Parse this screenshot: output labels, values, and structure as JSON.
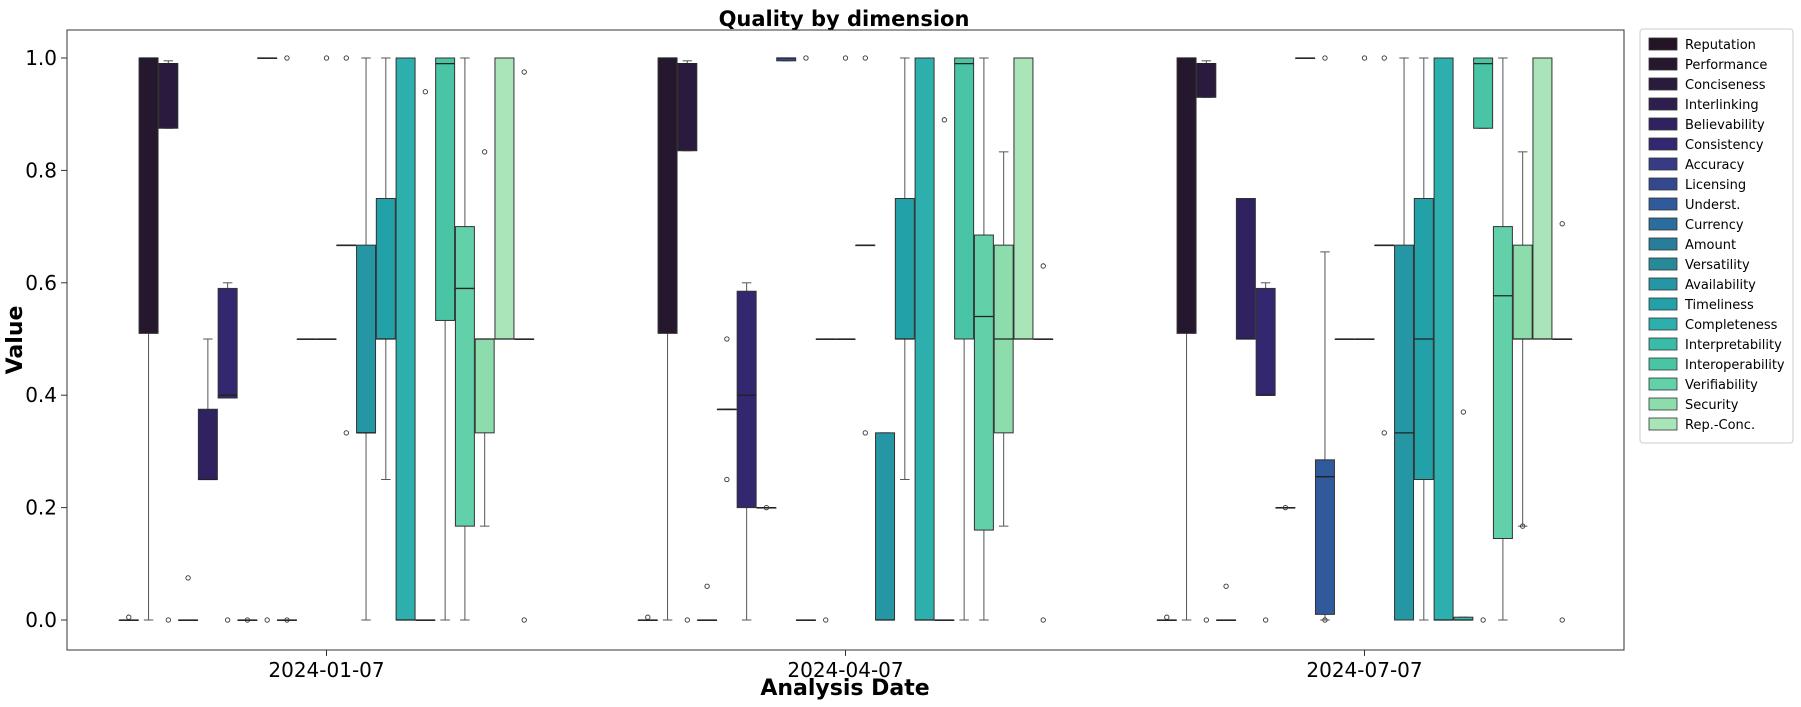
{
  "chart_data": {
    "type": "box",
    "title": "Quality by dimension",
    "xlabel": "Analysis Date",
    "ylabel": "Value",
    "ylim": [
      -0.05,
      1.045
    ],
    "yticks": [
      "0.0",
      "0.2",
      "0.4",
      "0.6",
      "0.8",
      "1.0"
    ],
    "categories": [
      "2024-01-07",
      "2024-04-07",
      "2024-07-07"
    ],
    "legend_position": "right-outside",
    "series": [
      {
        "name": "Reputation",
        "color": "#231526",
        "boxes": [
          {
            "whislo": 0,
            "q1": 0,
            "med": 0,
            "q3": 0,
            "whishi": 0,
            "fliers": [
              0.005
            ]
          },
          {
            "whislo": 0,
            "q1": 0,
            "med": 0,
            "q3": 0,
            "whishi": 0,
            "fliers": [
              0.005
            ]
          },
          {
            "whislo": 0,
            "q1": 0,
            "med": 0,
            "q3": 0,
            "whishi": 0,
            "fliers": [
              0.005
            ]
          }
        ]
      },
      {
        "name": "Performance",
        "color": "#25172d",
        "boxes": [
          {
            "whislo": 0,
            "q1": 0.51,
            "med": 1.0,
            "q3": 1.0,
            "whishi": 1.0,
            "fliers": []
          },
          {
            "whislo": 0,
            "q1": 0.51,
            "med": 1.0,
            "q3": 1.0,
            "whishi": 1.0,
            "fliers": []
          },
          {
            "whislo": 0,
            "q1": 0.51,
            "med": 1.0,
            "q3": 1.0,
            "whishi": 1.0,
            "fliers": []
          }
        ]
      },
      {
        "name": "Conciseness",
        "color": "#2a1a3d",
        "boxes": [
          {
            "whislo": 0.875,
            "q1": 0.875,
            "med": 0.99,
            "q3": 0.99,
            "whishi": 0.995,
            "fliers": [
              0
            ]
          },
          {
            "whislo": 0.835,
            "q1": 0.835,
            "med": 0.99,
            "q3": 0.99,
            "whishi": 0.995,
            "fliers": [
              0
            ]
          },
          {
            "whislo": 0.93,
            "q1": 0.93,
            "med": 0.99,
            "q3": 0.99,
            "whishi": 0.995,
            "fliers": [
              0
            ]
          }
        ]
      },
      {
        "name": "Interlinking",
        "color": "#2e1e4e",
        "boxes": [
          {
            "whislo": 0,
            "q1": 0,
            "med": 0,
            "q3": 0,
            "whishi": 0,
            "fliers": [
              0.075
            ]
          },
          {
            "whislo": 0,
            "q1": 0,
            "med": 0,
            "q3": 0,
            "whishi": 0,
            "fliers": [
              0.06
            ]
          },
          {
            "whislo": 0,
            "q1": 0,
            "med": 0,
            "q3": 0,
            "whishi": 0,
            "fliers": [
              0.06
            ]
          }
        ]
      },
      {
        "name": "Believability",
        "color": "#302260",
        "boxes": [
          {
            "whislo": 0.25,
            "q1": 0.25,
            "med": 0.25,
            "q3": 0.375,
            "whishi": 0.5,
            "fliers": []
          },
          {
            "whislo": 0.375,
            "q1": 0.375,
            "med": 0.375,
            "q3": 0.375,
            "whishi": 0.375,
            "fliers": [
              0.5,
              0.25
            ]
          },
          {
            "whislo": 0.5,
            "q1": 0.5,
            "med": 0.5,
            "q3": 0.75,
            "whishi": 0.75,
            "fliers": []
          }
        ]
      },
      {
        "name": "Consistency",
        "color": "#33286f",
        "boxes": [
          {
            "whislo": 0.395,
            "q1": 0.395,
            "med": 0.4,
            "q3": 0.59,
            "whishi": 0.6,
            "fliers": [
              0
            ]
          },
          {
            "whislo": 0,
            "q1": 0.2,
            "med": 0.4,
            "q3": 0.585,
            "whishi": 0.6,
            "fliers": []
          },
          {
            "whislo": 0.4,
            "q1": 0.4,
            "med": 0.4,
            "q3": 0.59,
            "whishi": 0.6,
            "fliers": [
              0
            ]
          }
        ]
      },
      {
        "name": "Accuracy",
        "color": "#373b86",
        "boxes": [
          {
            "whislo": 0,
            "q1": 0,
            "med": 0,
            "q3": 0,
            "whishi": 0,
            "fliers": [
              0
            ]
          },
          {
            "whislo": 0.2,
            "q1": 0.2,
            "med": 0.2,
            "q3": 0.2,
            "whishi": 0.2,
            "fliers": [
              0.2
            ]
          },
          {
            "whislo": 0.2,
            "q1": 0.2,
            "med": 0.2,
            "q3": 0.2,
            "whishi": 0.2,
            "fliers": [
              0.2
            ]
          }
        ]
      },
      {
        "name": "Licensing",
        "color": "#34488f",
        "boxes": [
          {
            "whislo": 1.0,
            "q1": 1.0,
            "med": 1.0,
            "q3": 1.0,
            "whishi": 1.0,
            "fliers": [
              0
            ]
          },
          {
            "whislo": 0.995,
            "q1": 0.995,
            "med": 1.0,
            "q3": 1.0,
            "whishi": 1.0,
            "fliers": []
          },
          {
            "whislo": 1.0,
            "q1": 1.0,
            "med": 1.0,
            "q3": 1.0,
            "whishi": 1.0,
            "fliers": []
          }
        ]
      },
      {
        "name": "Underst.",
        "color": "#305a9b",
        "boxes": [
          {
            "whislo": 0,
            "q1": 0,
            "med": 0,
            "q3": 0,
            "whishi": 0,
            "fliers": [
              1.0,
              0
            ]
          },
          {
            "whislo": 0,
            "q1": 0,
            "med": 0,
            "q3": 0,
            "whishi": 0,
            "fliers": [
              1.0
            ]
          },
          {
            "whislo": 0,
            "q1": 0.01,
            "med": 0.255,
            "q3": 0.285,
            "whishi": 0.655,
            "fliers": [
              1.0,
              0
            ]
          }
        ]
      },
      {
        "name": "Currency",
        "color": "#2b6d9d",
        "boxes": [
          {
            "whislo": 0.5,
            "q1": 0.5,
            "med": 0.5,
            "q3": 0.5,
            "whishi": 0.5,
            "fliers": []
          },
          {
            "whislo": 0.5,
            "q1": 0.5,
            "med": 0.5,
            "q3": 0.5,
            "whishi": 0.5,
            "fliers": [
              0
            ]
          },
          {
            "whislo": 0.5,
            "q1": 0.5,
            "med": 0.5,
            "q3": 0.5,
            "whishi": 0.5,
            "fliers": []
          }
        ]
      },
      {
        "name": "Amount",
        "color": "#287d9b",
        "boxes": [
          {
            "whislo": 0.5,
            "q1": 0.5,
            "med": 0.5,
            "q3": 0.5,
            "whishi": 0.5,
            "fliers": [
              1.0
            ]
          },
          {
            "whislo": 0.5,
            "q1": 0.5,
            "med": 0.5,
            "q3": 0.5,
            "whishi": 0.5,
            "fliers": [
              1.0
            ]
          },
          {
            "whislo": 0.5,
            "q1": 0.5,
            "med": 0.5,
            "q3": 0.5,
            "whishi": 0.5,
            "fliers": [
              1.0
            ]
          }
        ]
      },
      {
        "name": "Versatility",
        "color": "#268a98",
        "boxes": [
          {
            "whislo": 0.667,
            "q1": 0.667,
            "med": 0.667,
            "q3": 0.667,
            "whishi": 0.667,
            "fliers": [
              1.0,
              0.333
            ]
          },
          {
            "whislo": 0.667,
            "q1": 0.667,
            "med": 0.667,
            "q3": 0.667,
            "whishi": 0.667,
            "fliers": [
              1.0,
              0.333
            ]
          },
          {
            "whislo": 0.667,
            "q1": 0.667,
            "med": 0.667,
            "q3": 0.667,
            "whishi": 0.667,
            "fliers": [
              1.0,
              0.333
            ]
          }
        ]
      },
      {
        "name": "Availability",
        "color": "#2496a4",
        "boxes": [
          {
            "whislo": 0,
            "q1": 0.333,
            "med": 0.333,
            "q3": 0.667,
            "whishi": 1.0,
            "fliers": []
          },
          {
            "whislo": 0,
            "q1": 0,
            "med": 0,
            "q3": 0.333,
            "whishi": 0.333,
            "fliers": []
          },
          {
            "whislo": 0,
            "q1": 0,
            "med": 0.333,
            "q3": 0.667,
            "whishi": 1.0,
            "fliers": []
          }
        ]
      },
      {
        "name": "Timeliness",
        "color": "#22a2a8",
        "boxes": [
          {
            "whislo": 0.25,
            "q1": 0.5,
            "med": 0.5,
            "q3": 0.75,
            "whishi": 1.0,
            "fliers": []
          },
          {
            "whislo": 0.25,
            "q1": 0.5,
            "med": 0.5,
            "q3": 0.75,
            "whishi": 1.0,
            "fliers": []
          },
          {
            "whislo": 0,
            "q1": 0.25,
            "med": 0.5,
            "q3": 0.75,
            "whishi": 1.0,
            "fliers": []
          }
        ]
      },
      {
        "name": "Completeness",
        "color": "#2db0ad",
        "boxes": [
          {
            "whislo": 0,
            "q1": 0,
            "med": 0,
            "q3": 1.0,
            "whishi": 1.0,
            "fliers": []
          },
          {
            "whislo": 0,
            "q1": 0,
            "med": 0,
            "q3": 1.0,
            "whishi": 1.0,
            "fliers": []
          },
          {
            "whislo": 0,
            "q1": 0,
            "med": 0,
            "q3": 1.0,
            "whishi": 1.0,
            "fliers": []
          }
        ]
      },
      {
        "name": "Interpretability",
        "color": "#38bba8",
        "boxes": [
          {
            "whislo": 0,
            "q1": 0,
            "med": 0,
            "q3": 0,
            "whishi": 0,
            "fliers": [
              0.94
            ]
          },
          {
            "whislo": 0,
            "q1": 0,
            "med": 0,
            "q3": 0,
            "whishi": 0,
            "fliers": [
              0.89
            ]
          },
          {
            "whislo": 0,
            "q1": 0,
            "med": 0,
            "q3": 0.005,
            "whishi": 0.005,
            "fliers": [
              0.37
            ]
          }
        ]
      },
      {
        "name": "Interoperability",
        "color": "#49c4a4",
        "boxes": [
          {
            "whislo": 0,
            "q1": 0.533,
            "med": 0.99,
            "q3": 1.0,
            "whishi": 1.0,
            "fliers": []
          },
          {
            "whislo": 0,
            "q1": 0.5,
            "med": 0.99,
            "q3": 1.0,
            "whishi": 1.0,
            "fliers": []
          },
          {
            "whislo": 0.875,
            "q1": 0.875,
            "med": 0.99,
            "q3": 1.0,
            "whishi": 1.0,
            "fliers": [
              0
            ]
          }
        ]
      },
      {
        "name": "Verifiability",
        "color": "#62d0a8",
        "boxes": [
          {
            "whislo": 0,
            "q1": 0.167,
            "med": 0.59,
            "q3": 0.7,
            "whishi": 1.0,
            "fliers": []
          },
          {
            "whislo": 0,
            "q1": 0.16,
            "med": 0.54,
            "q3": 0.685,
            "whishi": 1.0,
            "fliers": []
          },
          {
            "whislo": 0,
            "q1": 0.145,
            "med": 0.577,
            "q3": 0.7,
            "whishi": 1.0,
            "fliers": []
          }
        ]
      },
      {
        "name": "Security",
        "color": "#8ddcac",
        "boxes": [
          {
            "whislo": 0.167,
            "q1": 0.333,
            "med": 0.5,
            "q3": 0.5,
            "whishi": 0.5,
            "fliers": [
              0.833
            ]
          },
          {
            "whislo": 0.167,
            "q1": 0.333,
            "med": 0.5,
            "q3": 0.667,
            "whishi": 0.833,
            "fliers": []
          },
          {
            "whislo": 0.167,
            "q1": 0.5,
            "med": 0.5,
            "q3": 0.667,
            "whishi": 0.833,
            "fliers": [
              0.167
            ]
          }
        ]
      },
      {
        "name": "Rep.-Conc.",
        "color": "#a9e5b9",
        "boxes": [
          {
            "whislo": 0.5,
            "q1": 0.5,
            "med": 0.5,
            "q3": 1.0,
            "whishi": 1.0,
            "fliers": []
          },
          {
            "whislo": 0.5,
            "q1": 0.5,
            "med": 0.5,
            "q3": 1.0,
            "whishi": 1.0,
            "fliers": []
          },
          {
            "whislo": 0.5,
            "q1": 0.5,
            "med": 0.5,
            "q3": 1.0,
            "whishi": 1.0,
            "fliers": []
          }
        ]
      },
      {
        "name": "",
        "color": "#c9ecd1",
        "boxes": [
          {
            "whislo": 0.5,
            "q1": 0.5,
            "med": 0.5,
            "q3": 0.5,
            "whishi": 0.5,
            "fliers": [
              0.975,
              0
            ]
          },
          {
            "whislo": 0.5,
            "q1": 0.5,
            "med": 0.5,
            "q3": 0.5,
            "whishi": 0.5,
            "fliers": [
              0.63,
              0
            ]
          },
          {
            "whislo": 0.5,
            "q1": 0.5,
            "med": 0.5,
            "q3": 0.5,
            "whishi": 0.5,
            "fliers": [
              0.705,
              0
            ]
          }
        ]
      }
    ]
  }
}
